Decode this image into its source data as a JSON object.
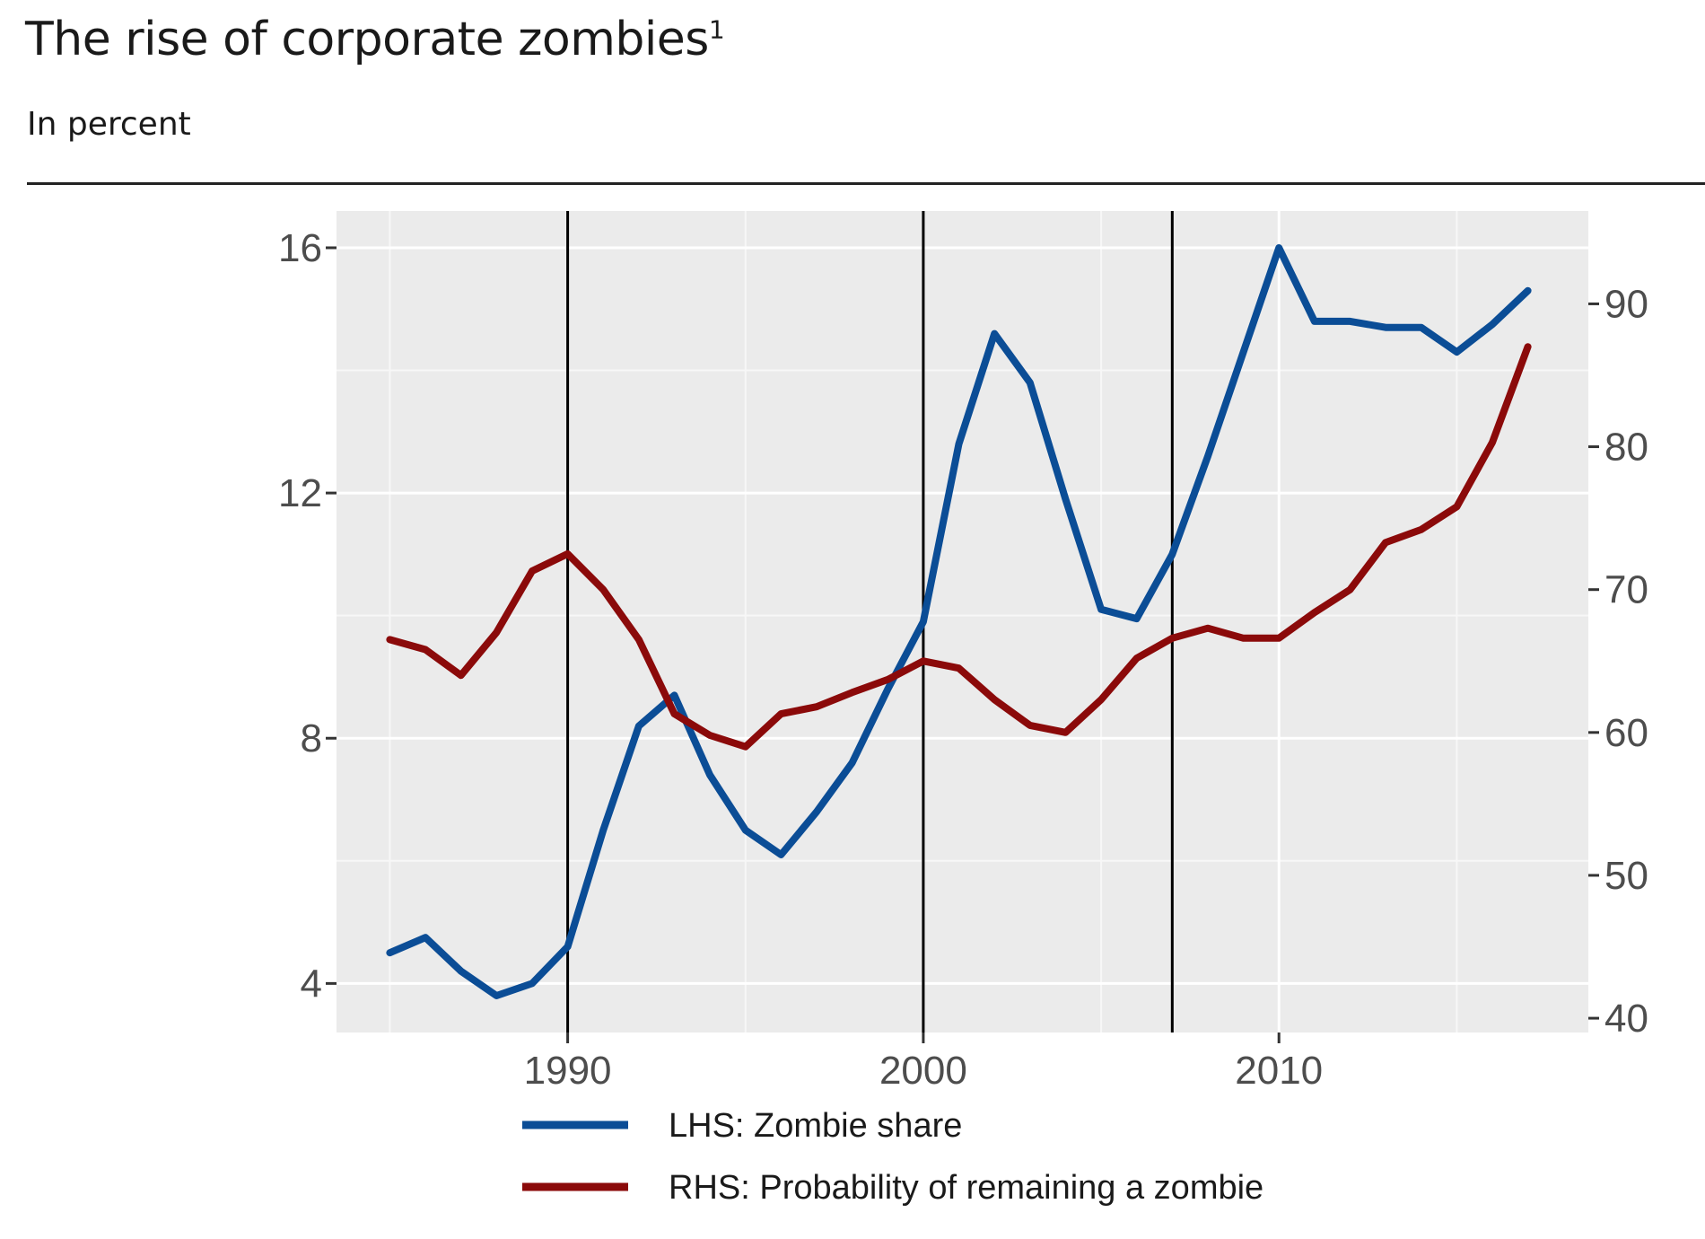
{
  "chart_data": {
    "type": "line",
    "title": "The rise of corporate zombies",
    "title_footnote": "1",
    "subtitle": "In percent",
    "x": [
      1985,
      1986,
      1987,
      1988,
      1989,
      1990,
      1991,
      1992,
      1993,
      1994,
      1995,
      1996,
      1997,
      1998,
      1999,
      2000,
      2001,
      2002,
      2003,
      2004,
      2005,
      2006,
      2007,
      2008,
      2009,
      2010,
      2011,
      2012,
      2013,
      2014,
      2015,
      2016,
      2017
    ],
    "series": [
      {
        "name": "LHS: Zombie share",
        "axis": "left",
        "color": "#0b4d96",
        "values": [
          4.5,
          4.75,
          4.2,
          3.8,
          4.0,
          4.6,
          6.5,
          8.2,
          8.7,
          7.4,
          6.5,
          6.1,
          6.8,
          7.6,
          8.8,
          9.9,
          12.8,
          14.6,
          13.8,
          11.9,
          10.1,
          9.95,
          11.0,
          12.6,
          14.3,
          16.0,
          14.8,
          14.8,
          14.7,
          14.7,
          14.3,
          14.75,
          15.3
        ]
      },
      {
        "name": "RHS: Probability of remaining a zombie",
        "axis": "right",
        "color": "#8b0a0a",
        "values": [
          66.5,
          65.8,
          64.0,
          67.0,
          71.3,
          72.5,
          70.0,
          66.5,
          61.3,
          59.8,
          59.0,
          61.3,
          61.8,
          62.8,
          63.7,
          65.0,
          64.5,
          62.3,
          60.5,
          60.0,
          62.3,
          65.2,
          66.6,
          67.3,
          66.6,
          66.6,
          68.4,
          70.0,
          73.3,
          74.2,
          75.8,
          80.3,
          87.0
        ]
      }
    ],
    "x_ticks": [
      "1990",
      "2000",
      "2010"
    ],
    "x_tick_values": [
      1990,
      2000,
      2010
    ],
    "x_range": [
      1983.5,
      2018.7
    ],
    "y_left_ticks": [
      "4",
      "8",
      "12",
      "16"
    ],
    "y_left_tick_values": [
      4,
      8,
      12,
      16
    ],
    "y_left_range": [
      3.2,
      16.6
    ],
    "y_right_ticks": [
      "40",
      "50",
      "60",
      "70",
      "80",
      "90"
    ],
    "y_right_tick_values": [
      40,
      50,
      60,
      70,
      80,
      90
    ],
    "y_right_range": [
      39.0,
      96.5
    ],
    "vlines": [
      1990,
      2000,
      2007
    ],
    "grid": true,
    "legend_position": "bottom"
  }
}
